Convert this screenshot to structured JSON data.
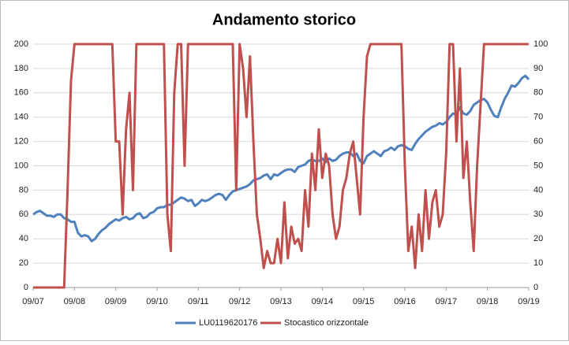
{
  "chart_data": {
    "type": "line",
    "title": "Andamento storico",
    "categories": [
      "09/07",
      null,
      null,
      null,
      null,
      null,
      null,
      null,
      null,
      null,
      null,
      null,
      "09/08",
      null,
      null,
      null,
      null,
      null,
      null,
      null,
      null,
      null,
      null,
      null,
      "09/09",
      null,
      null,
      null,
      null,
      null,
      null,
      null,
      null,
      null,
      null,
      null,
      "09/10",
      null,
      null,
      null,
      null,
      null,
      null,
      null,
      null,
      null,
      null,
      null,
      "09/11",
      null,
      null,
      null,
      null,
      null,
      null,
      null,
      null,
      null,
      null,
      null,
      "09/12",
      null,
      null,
      null,
      null,
      null,
      null,
      null,
      null,
      null,
      null,
      null,
      "09/13",
      null,
      null,
      null,
      null,
      null,
      null,
      null,
      null,
      null,
      null,
      null,
      "09/14",
      null,
      null,
      null,
      null,
      null,
      null,
      null,
      null,
      null,
      null,
      null,
      "09/15",
      null,
      null,
      null,
      null,
      null,
      null,
      null,
      null,
      null,
      null,
      null,
      "09/16",
      null,
      null,
      null,
      null,
      null,
      null,
      null,
      null,
      null,
      null,
      null,
      "09/17",
      null,
      null,
      null,
      null,
      null,
      null,
      null,
      null,
      null,
      null,
      null,
      "09/18",
      null,
      null,
      null,
      null,
      null,
      null,
      null,
      null,
      null,
      null,
      null,
      "09/19"
    ],
    "series": [
      {
        "name": "LU0119620176",
        "color": "#4f81bd",
        "values": [
          60,
          62,
          63,
          61,
          59,
          59,
          58,
          60,
          60,
          57,
          56,
          54,
          54,
          45,
          42,
          43,
          42,
          38,
          40,
          44,
          47,
          49,
          52,
          54,
          56,
          55,
          57,
          58,
          56,
          57,
          60,
          61,
          57,
          58,
          61,
          62,
          65,
          66,
          66,
          68,
          68,
          70,
          72,
          74,
          73,
          71,
          72,
          67,
          69,
          72,
          71,
          72,
          74,
          76,
          77,
          76,
          72,
          76,
          79,
          80,
          81,
          82,
          83,
          85,
          88,
          89,
          90,
          92,
          93,
          89,
          93,
          92,
          94,
          96,
          97,
          97,
          95,
          99,
          100,
          101,
          104,
          105,
          104,
          104,
          106,
          103,
          106,
          104,
          105,
          108,
          110,
          111,
          111,
          108,
          110,
          104,
          102,
          108,
          110,
          112,
          110,
          108,
          112,
          113,
          115,
          113,
          116,
          117,
          116,
          114,
          113,
          118,
          122,
          125,
          128,
          130,
          132,
          133,
          135,
          134,
          136,
          140,
          143,
          142,
          148,
          143,
          142,
          145,
          150,
          152,
          154,
          155,
          152,
          146,
          141,
          140,
          148,
          155,
          160,
          166,
          165,
          168,
          172,
          174,
          171
        ]
      },
      {
        "name": "Stocastico orizzontale",
        "color": "#c0504d",
        "axis": "y2",
        "values": [
          0,
          0,
          0,
          0,
          0,
          0,
          0,
          0,
          0,
          0,
          40,
          85,
          100,
          100,
          100,
          100,
          100,
          100,
          100,
          100,
          100,
          100,
          100,
          100,
          60,
          60,
          30,
          65,
          80,
          40,
          100,
          100,
          100,
          100,
          100,
          100,
          100,
          100,
          100,
          30,
          15,
          80,
          100,
          100,
          50,
          100,
          100,
          100,
          100,
          100,
          100,
          100,
          100,
          100,
          100,
          100,
          100,
          100,
          100,
          40,
          100,
          90,
          70,
          95,
          60,
          30,
          20,
          8,
          15,
          10,
          10,
          20,
          10,
          35,
          12,
          25,
          18,
          20,
          15,
          40,
          25,
          55,
          40,
          65,
          45,
          55,
          50,
          30,
          20,
          25,
          40,
          45,
          55,
          60,
          45,
          30,
          70,
          95,
          100,
          100,
          100,
          100,
          100,
          100,
          100,
          100,
          100,
          100,
          50,
          15,
          25,
          8,
          30,
          15,
          40,
          20,
          35,
          40,
          25,
          30,
          55,
          100,
          100,
          60,
          90,
          45,
          60,
          35,
          15,
          50,
          75,
          100,
          100,
          100,
          100,
          100,
          100,
          100,
          100,
          100,
          100,
          100,
          100,
          100,
          100
        ]
      }
    ],
    "ylim": [
      0,
      200
    ],
    "yticks": [
      0,
      20,
      40,
      60,
      80,
      100,
      120,
      140,
      160,
      180,
      200
    ],
    "y2lim": [
      0,
      100
    ],
    "y2ticks": [
      0,
      10,
      20,
      30,
      40,
      50,
      60,
      70,
      80,
      90,
      100
    ],
    "grid": true,
    "legend": "bottom"
  }
}
